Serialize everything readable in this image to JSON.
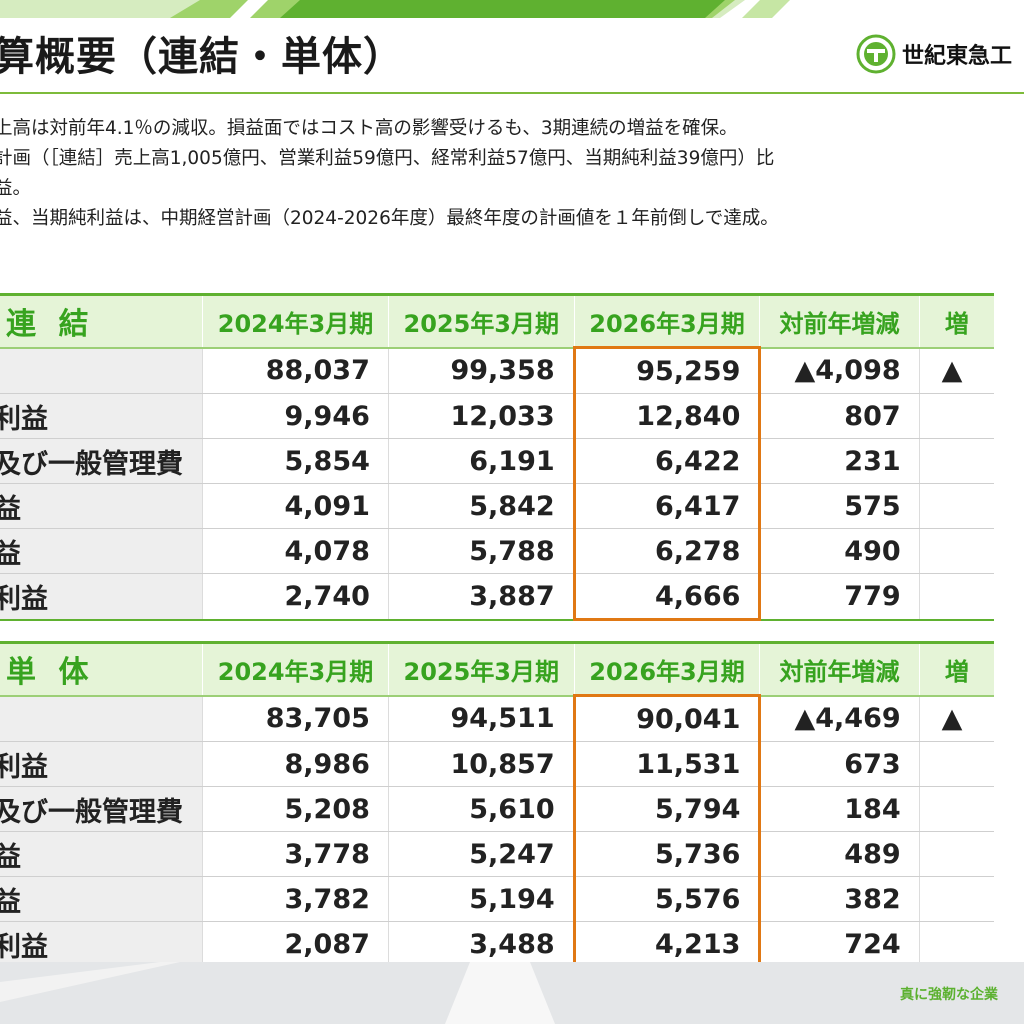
{
  "header": {
    "title": "算概要（連結・単体）",
    "logo_text": "世紀東急工",
    "brand_green": "#5fb130",
    "accent_orange": "#e07814"
  },
  "bullets": [
    "上高は対前年4.1％の減収。損益面ではコスト高の影響受けるも、3期連続の増益を確保。",
    "計画（［連結］売上高1,005億円、営業利益59億円、経常利益57億円、当期純利益39億円）比",
    "益。",
    "益、当期純利益は、中期経営計画（2024-2026年度）最終年度の計画値を１年前倒しで達成。"
  ],
  "unit_note": "（",
  "tables": [
    {
      "section": "連 結",
      "headers": [
        "2024年3月期",
        "2025年3月期",
        "2026年3月期",
        "対前年増減",
        "増"
      ],
      "rows": [
        {
          "label": "",
          "v": [
            "88,037",
            "99,358",
            "95,259",
            "▲4,098",
            "▲"
          ]
        },
        {
          "label": "利益",
          "v": [
            "9,946",
            "12,033",
            "12,840",
            "807",
            ""
          ]
        },
        {
          "label": "及び一般管理費",
          "v": [
            "5,854",
            "6,191",
            "6,422",
            "231",
            ""
          ]
        },
        {
          "label": "益",
          "v": [
            "4,091",
            "5,842",
            "6,417",
            "575",
            ""
          ]
        },
        {
          "label": "益",
          "v": [
            "4,078",
            "5,788",
            "6,278",
            "490",
            ""
          ]
        },
        {
          "label": "利益",
          "v": [
            "2,740",
            "3,887",
            "4,666",
            "779",
            ""
          ]
        }
      ]
    },
    {
      "section": "単 体",
      "headers": [
        "2024年3月期",
        "2025年3月期",
        "2026年3月期",
        "対前年増減",
        "増"
      ],
      "rows": [
        {
          "label": "",
          "v": [
            "83,705",
            "94,511",
            "90,041",
            "▲4,469",
            "▲"
          ]
        },
        {
          "label": "利益",
          "v": [
            "8,986",
            "10,857",
            "11,531",
            "673",
            ""
          ]
        },
        {
          "label": "及び一般管理費",
          "v": [
            "5,208",
            "5,610",
            "5,794",
            "184",
            ""
          ]
        },
        {
          "label": "益",
          "v": [
            "3,778",
            "5,247",
            "5,736",
            "489",
            ""
          ]
        },
        {
          "label": "益",
          "v": [
            "3,782",
            "5,194",
            "5,576",
            "382",
            ""
          ]
        },
        {
          "label": "利益",
          "v": [
            "2,087",
            "3,488",
            "4,213",
            "724",
            ""
          ]
        }
      ]
    }
  ],
  "footer": {
    "slogan": "真に強靭な企業"
  }
}
